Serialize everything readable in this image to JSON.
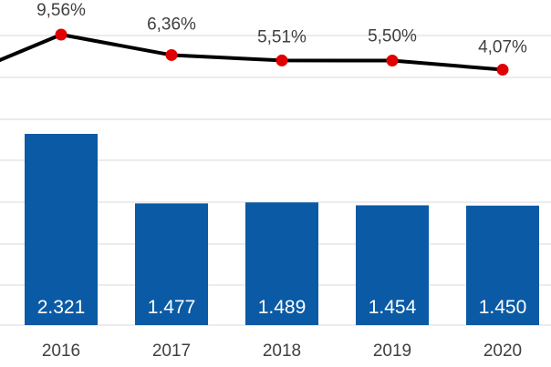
{
  "chart_data": {
    "type": "bar",
    "categories": [
      "2016",
      "2017",
      "2018",
      "2019",
      "2020"
    ],
    "series": [
      {
        "type": "bar",
        "values": [
          2321,
          1477,
          1489,
          1454,
          1450
        ],
        "labels": [
          "2.321",
          "1.477",
          "1.489",
          "1.454",
          "1.450"
        ],
        "color": "#0a5aa5"
      },
      {
        "type": "line",
        "values": [
          9.56,
          6.36,
          5.51,
          5.5,
          4.07
        ],
        "labels": [
          "9,56%",
          "6,36%",
          "5,51%",
          "5,50%",
          "4,07%"
        ],
        "line_color": "#000000",
        "marker_color": "#e00000"
      }
    ],
    "grid": true,
    "legend": "none"
  }
}
